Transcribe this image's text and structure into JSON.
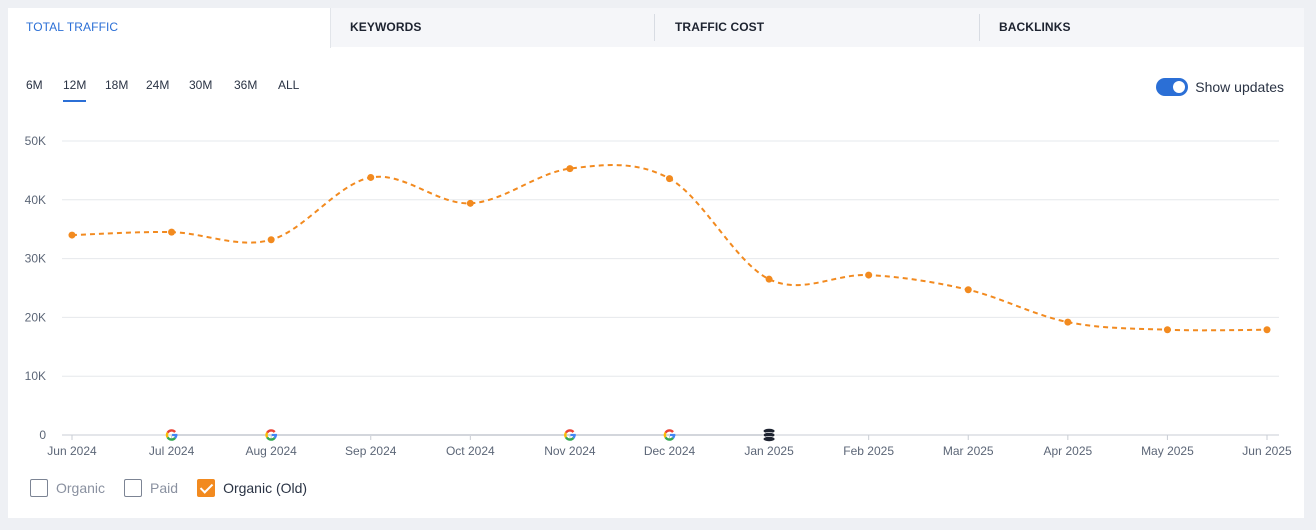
{
  "tabs": [
    {
      "label": "TOTAL TRAFFIC",
      "active": true
    },
    {
      "label": "KEYWORDS",
      "active": false
    },
    {
      "label": "TRAFFIC COST",
      "active": false
    },
    {
      "label": "BACKLINKS",
      "active": false
    }
  ],
  "periods": [
    "6M",
    "12M",
    "18M",
    "24M",
    "30M",
    "36M",
    "ALL"
  ],
  "active_period": "12M",
  "show_updates": {
    "label": "Show updates",
    "enabled": true
  },
  "legend": [
    {
      "label": "Organic",
      "checked": false
    },
    {
      "label": "Paid",
      "checked": false
    },
    {
      "label": "Organic (Old)",
      "checked": true
    }
  ],
  "colors": {
    "accent": "#2b6fd6",
    "series": "#f28a1f",
    "grid": "#e6e8ec"
  },
  "chart_data": {
    "type": "line",
    "x": [
      "Jun 2024",
      "Jul 2024",
      "Aug 2024",
      "Sep 2024",
      "Oct 2024",
      "Nov 2024",
      "Dec 2024",
      "Jan 2025",
      "Feb 2025",
      "Mar 2025",
      "Apr 2025",
      "May 2025",
      "Jun 2025"
    ],
    "series": [
      {
        "name": "Organic (Old)",
        "values": [
          34000,
          34500,
          33200,
          43800,
          39400,
          45300,
          43600,
          26500,
          27200,
          24700,
          19200,
          17900,
          17900
        ],
        "style": "dashed"
      }
    ],
    "ylim": [
      0,
      50000
    ],
    "yticks": [
      "0",
      "10K",
      "20K",
      "30K",
      "40K",
      "50K"
    ],
    "yticks_values": [
      0,
      10000,
      20000,
      30000,
      40000,
      50000
    ],
    "grid": true,
    "update_markers": [
      {
        "x": "Jul 2024",
        "icon": "google-icon"
      },
      {
        "x": "Aug 2024",
        "icon": "google-icon"
      },
      {
        "x": "Nov 2024",
        "icon": "google-icon"
      },
      {
        "x": "Dec 2024",
        "icon": "google-icon"
      },
      {
        "x": "Jan 2025",
        "icon": "database-icon"
      }
    ]
  }
}
